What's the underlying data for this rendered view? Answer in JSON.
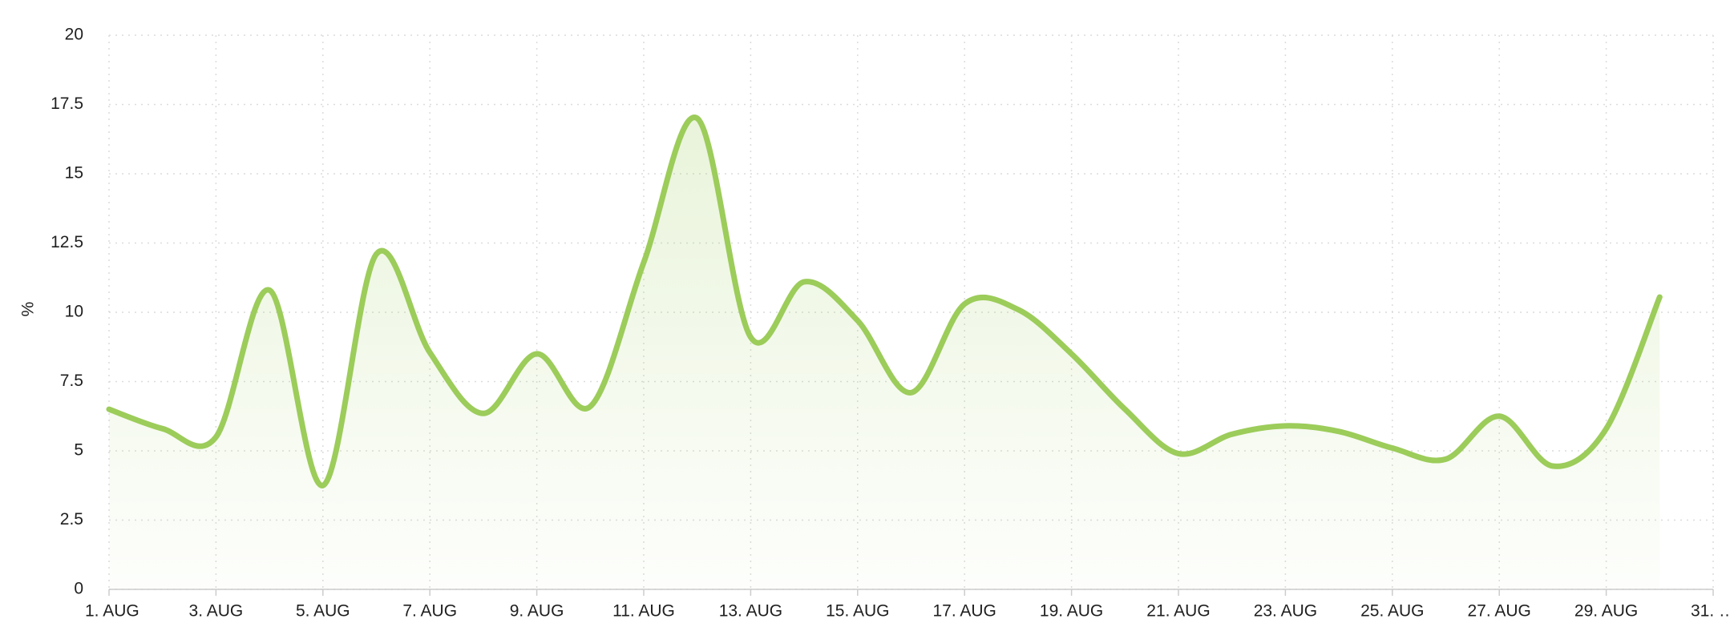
{
  "chart_data": {
    "type": "line",
    "y_label": "%",
    "categories": [
      "1. AUG",
      null,
      "3. AUG",
      null,
      "5. AUG",
      null,
      "7. AUG",
      null,
      "9. AUG",
      null,
      "11. AUG",
      null,
      "13. AUG",
      null,
      "15. AUG",
      null,
      "17. AUG",
      null,
      "19. AUG",
      null,
      "21. AUG",
      null,
      "23. AUG",
      null,
      "25. AUG",
      null,
      "27. AUG",
      null,
      "29. AUG",
      null,
      "31. …"
    ],
    "series": [
      {
        "color": "#9ccc5a",
        "values": [
          6.5,
          5.8,
          5.5,
          10.8,
          3.75,
          12.1,
          8.55,
          6.35,
          8.5,
          6.6,
          11.8,
          17,
          9.1,
          11.1,
          9.7,
          7.1,
          10.3,
          10.1,
          8.5,
          6.5,
          4.9,
          5.6,
          5.9,
          5.7,
          5.1,
          4.7,
          6.25,
          4.45,
          5.8,
          10.55,
          null
        ]
      }
    ],
    "ylim": [
      0,
      20
    ],
    "yticks": [
      0,
      2.5,
      5,
      7.5,
      10,
      12.5,
      15,
      17.5,
      20
    ],
    "grid": true
  }
}
